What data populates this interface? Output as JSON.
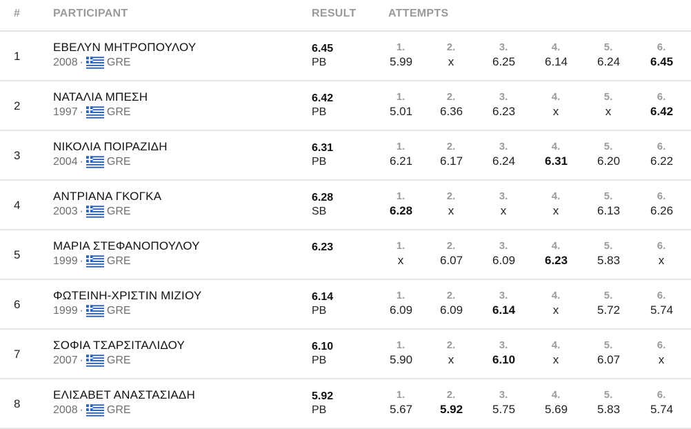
{
  "header": {
    "rank": "#",
    "participant": "PARTICIPANT",
    "result": "RESULT",
    "attempts": "ATTEMPTS"
  },
  "flag_colors": {
    "blue": "#2a63b6",
    "white": "#ffffff"
  },
  "flag_icon": "greek-flag-icon",
  "rows": [
    {
      "rank": "1",
      "name": "ΕΒΕΛΥΝ ΜΗΤΡΟΠΟΥΛΟΥ",
      "year": "2008",
      "sep": "·",
      "country": "GRE",
      "result": "6.45",
      "note": "PB",
      "attempts": [
        {
          "n": "1.",
          "v": "5.99",
          "best": false
        },
        {
          "n": "2.",
          "v": "x",
          "best": false
        },
        {
          "n": "3.",
          "v": "6.25",
          "best": false
        },
        {
          "n": "4.",
          "v": "6.14",
          "best": false
        },
        {
          "n": "5.",
          "v": "6.24",
          "best": false
        },
        {
          "n": "6.",
          "v": "6.45",
          "best": true
        }
      ]
    },
    {
      "rank": "2",
      "name": "ΝΑΤΑΛΙΑ ΜΠΕΣΗ",
      "year": "1997",
      "sep": "·",
      "country": "GRE",
      "result": "6.42",
      "note": "PB",
      "attempts": [
        {
          "n": "1.",
          "v": "5.01",
          "best": false
        },
        {
          "n": "2.",
          "v": "6.36",
          "best": false
        },
        {
          "n": "3.",
          "v": "6.23",
          "best": false
        },
        {
          "n": "4.",
          "v": "x",
          "best": false
        },
        {
          "n": "5.",
          "v": "x",
          "best": false
        },
        {
          "n": "6.",
          "v": "6.42",
          "best": true
        }
      ]
    },
    {
      "rank": "3",
      "name": "ΝΙΚΟΛΙΑ ΠΟΙΡΑΖΙΔΗ",
      "year": "2004",
      "sep": "·",
      "country": "GRE",
      "result": "6.31",
      "note": "PB",
      "attempts": [
        {
          "n": "1.",
          "v": "6.21",
          "best": false
        },
        {
          "n": "2.",
          "v": "6.17",
          "best": false
        },
        {
          "n": "3.",
          "v": "6.24",
          "best": false
        },
        {
          "n": "4.",
          "v": "6.31",
          "best": true
        },
        {
          "n": "5.",
          "v": "6.20",
          "best": false
        },
        {
          "n": "6.",
          "v": "6.22",
          "best": false
        }
      ]
    },
    {
      "rank": "4",
      "name": "ΑΝΤΡΙΑΝΑ ΓΚΟΓΚΑ",
      "year": "2003",
      "sep": "·",
      "country": "GRE",
      "result": "6.28",
      "note": "SB",
      "attempts": [
        {
          "n": "1.",
          "v": "6.28",
          "best": true
        },
        {
          "n": "2.",
          "v": "x",
          "best": false
        },
        {
          "n": "3.",
          "v": "x",
          "best": false
        },
        {
          "n": "4.",
          "v": "x",
          "best": false
        },
        {
          "n": "5.",
          "v": "6.13",
          "best": false
        },
        {
          "n": "6.",
          "v": "6.26",
          "best": false
        }
      ]
    },
    {
      "rank": "5",
      "name": "ΜΑΡΙΑ ΣΤΕΦΑΝΟΠΟΥΛΟΥ",
      "year": "1999",
      "sep": "·",
      "country": "GRE",
      "result": "6.23",
      "note": "",
      "attempts": [
        {
          "n": "1.",
          "v": "x",
          "best": false
        },
        {
          "n": "2.",
          "v": "6.07",
          "best": false
        },
        {
          "n": "3.",
          "v": "6.09",
          "best": false
        },
        {
          "n": "4.",
          "v": "6.23",
          "best": true
        },
        {
          "n": "5.",
          "v": "5.83",
          "best": false
        },
        {
          "n": "6.",
          "v": "x",
          "best": false
        }
      ]
    },
    {
      "rank": "6",
      "name": "ΦΩΤΕΙΝΗ-ΧΡΙΣΤΙΝ ΜΙΖΙΟΥ",
      "year": "1999",
      "sep": "·",
      "country": "GRE",
      "result": "6.14",
      "note": "PB",
      "attempts": [
        {
          "n": "1.",
          "v": "6.09",
          "best": false
        },
        {
          "n": "2.",
          "v": "6.09",
          "best": false
        },
        {
          "n": "3.",
          "v": "6.14",
          "best": true
        },
        {
          "n": "4.",
          "v": "x",
          "best": false
        },
        {
          "n": "5.",
          "v": "5.72",
          "best": false
        },
        {
          "n": "6.",
          "v": "5.74",
          "best": false
        }
      ]
    },
    {
      "rank": "7",
      "name": "ΣΟΦΙΑ ΤΣΑΡΣΙΤΑΛΙΔΟΥ",
      "year": "2007",
      "sep": "·",
      "country": "GRE",
      "result": "6.10",
      "note": "PB",
      "attempts": [
        {
          "n": "1.",
          "v": "5.90",
          "best": false
        },
        {
          "n": "2.",
          "v": "x",
          "best": false
        },
        {
          "n": "3.",
          "v": "6.10",
          "best": true
        },
        {
          "n": "4.",
          "v": "x",
          "best": false
        },
        {
          "n": "5.",
          "v": "6.07",
          "best": false
        },
        {
          "n": "6.",
          "v": "x",
          "best": false
        }
      ]
    },
    {
      "rank": "8",
      "name": "ΕΛΙΣΑΒΕΤ ΑΝΑΣΤΑΣΙΑΔΗ",
      "year": "2008",
      "sep": "·",
      "country": "GRE",
      "result": "5.92",
      "note": "PB",
      "attempts": [
        {
          "n": "1.",
          "v": "5.67",
          "best": false
        },
        {
          "n": "2.",
          "v": "5.92",
          "best": true
        },
        {
          "n": "3.",
          "v": "5.75",
          "best": false
        },
        {
          "n": "4.",
          "v": "5.69",
          "best": false
        },
        {
          "n": "5.",
          "v": "5.83",
          "best": false
        },
        {
          "n": "6.",
          "v": "5.74",
          "best": false
        }
      ]
    }
  ]
}
